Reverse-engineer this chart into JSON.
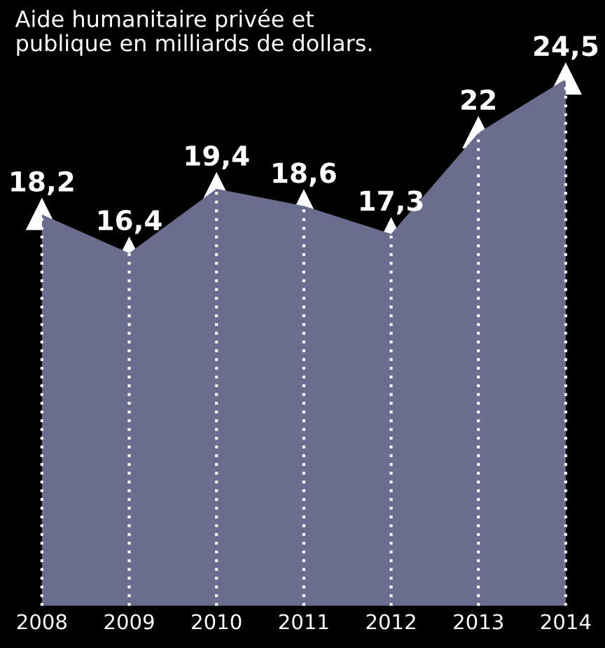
{
  "chart_data": {
    "type": "area",
    "title": "Aide humanitaire privée et\npublique en milliards de dollars.",
    "categories": [
      "2008",
      "2009",
      "2010",
      "2011",
      "2012",
      "2013",
      "2014"
    ],
    "series": [
      {
        "color": "#6c6c8e",
        "values": [
          18.2,
          16.4,
          19.4,
          18.6,
          17.3,
          22,
          24.5
        ],
        "value_labels": [
          "18,2",
          "16,4",
          "19,4",
          "18,6",
          "17,3",
          "22",
          "24,5"
        ]
      }
    ],
    "marker": "triangle",
    "grid": "x",
    "legend": false
  }
}
